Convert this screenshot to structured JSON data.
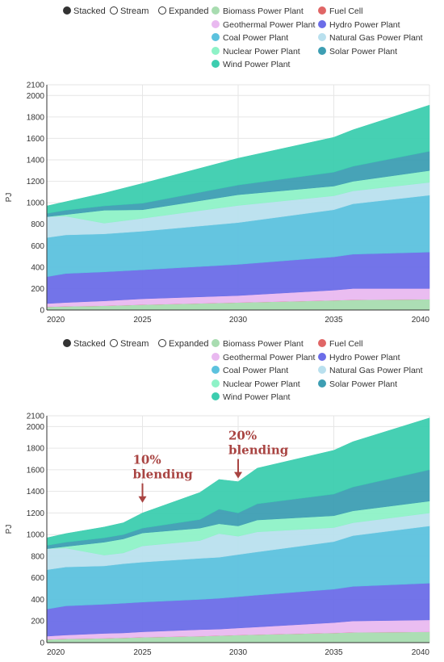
{
  "controls": [
    "Stacked",
    "Stream",
    "Expanded"
  ],
  "selected_control": "Stacked",
  "chart_data": [
    {
      "type": "area",
      "stacked": true,
      "xlabel": "",
      "ylabel": "PJ",
      "xlim": [
        2020,
        2040
      ],
      "ylim": [
        0,
        2100
      ],
      "x_ticks": [
        2020,
        2025,
        2030,
        2035,
        2040
      ],
      "y_ticks": [
        0,
        200,
        400,
        600,
        800,
        1000,
        1200,
        1400,
        1600,
        1800,
        2000,
        2100
      ],
      "grid": true,
      "legend": "top",
      "x": [
        2020,
        2021,
        2023,
        2025,
        2030,
        2035,
        2036,
        2040
      ],
      "series": [
        {
          "name": "Biomass Power Plant",
          "color": "#a8dcb0",
          "values": [
            30,
            35,
            40,
            50,
            70,
            90,
            95,
            100
          ]
        },
        {
          "name": "Fuel Cell",
          "color": "#e06666",
          "values": [
            0,
            0,
            0,
            0,
            0,
            0,
            0,
            0
          ]
        },
        {
          "name": "Geothermal Power Plant",
          "color": "#e9b9f0",
          "values": [
            30,
            35,
            45,
            55,
            65,
            95,
            105,
            100
          ]
        },
        {
          "name": "Hydro Power Plant",
          "color": "#6b6de8",
          "values": [
            250,
            270,
            270,
            270,
            290,
            310,
            320,
            340
          ]
        },
        {
          "name": "Coal Power Plant",
          "color": "#5cc2de",
          "values": [
            365,
            360,
            355,
            360,
            390,
            440,
            470,
            530
          ]
        },
        {
          "name": "Natural Gas Power Plant",
          "color": "#b9e0ee",
          "values": [
            195,
            175,
            100,
            120,
            160,
            130,
            120,
            120
          ]
        },
        {
          "name": "Nuclear Power Plant",
          "color": "#8ef2c7",
          "values": [
            0,
            15,
            120,
            80,
            100,
            90,
            90,
            110
          ]
        },
        {
          "name": "Solar Power Plant",
          "color": "#3d9eb3",
          "values": [
            30,
            40,
            40,
            60,
            90,
            130,
            140,
            180
          ]
        },
        {
          "name": "Wind Power Plant",
          "color": "#3ccdaf",
          "values": [
            70,
            80,
            120,
            185,
            250,
            325,
            340,
            430
          ]
        }
      ]
    },
    {
      "type": "area",
      "stacked": true,
      "xlabel": "",
      "ylabel": "PJ",
      "xlim": [
        2020,
        2040
      ],
      "ylim": [
        0,
        2100
      ],
      "x_ticks": [
        2020,
        2025,
        2030,
        2035,
        2040
      ],
      "y_ticks": [
        0,
        200,
        400,
        600,
        800,
        1000,
        1200,
        1400,
        1600,
        1800,
        2000,
        2100
      ],
      "grid": true,
      "legend": "top",
      "x": [
        2020,
        2021,
        2023,
        2024,
        2025,
        2028,
        2029,
        2030,
        2031,
        2035,
        2036,
        2040
      ],
      "series": [
        {
          "name": "Biomass Power Plant",
          "color": "#a8dcb0",
          "values": [
            30,
            35,
            40,
            45,
            50,
            60,
            65,
            70,
            75,
            90,
            95,
            100
          ]
        },
        {
          "name": "Fuel Cell",
          "color": "#e06666",
          "values": [
            0,
            0,
            0,
            0,
            0,
            0,
            0,
            0,
            0,
            0,
            0,
            0
          ]
        },
        {
          "name": "Geothermal Power Plant",
          "color": "#e9b9f0",
          "values": [
            30,
            35,
            45,
            45,
            50,
            60,
            60,
            65,
            70,
            95,
            105,
            110
          ]
        },
        {
          "name": "Hydro Power Plant",
          "color": "#6b6de8",
          "values": [
            250,
            270,
            270,
            275,
            275,
            280,
            285,
            290,
            295,
            310,
            320,
            340
          ]
        },
        {
          "name": "Coal Power Plant",
          "color": "#5cc2de",
          "values": [
            365,
            360,
            355,
            365,
            370,
            380,
            380,
            390,
            400,
            440,
            470,
            530
          ]
        },
        {
          "name": "Natural Gas Power Plant",
          "color": "#b9e0ee",
          "values": [
            195,
            175,
            100,
            100,
            150,
            165,
            220,
            170,
            185,
            130,
            120,
            120
          ]
        },
        {
          "name": "Nuclear Power Plant",
          "color": "#8ef2c7",
          "values": [
            0,
            15,
            120,
            130,
            120,
            115,
            90,
            95,
            110,
            110,
            110,
            110
          ]
        },
        {
          "name": "Solar Power Plant",
          "color": "#3d9eb3",
          "values": [
            30,
            40,
            40,
            40,
            45,
            80,
            135,
            120,
            150,
            200,
            220,
            290
          ]
        },
        {
          "name": "Wind Power Plant",
          "color": "#3ccdaf",
          "values": [
            70,
            80,
            100,
            110,
            140,
            250,
            275,
            290,
            330,
            405,
            420,
            480
          ]
        }
      ],
      "annotations": [
        {
          "lines": [
            "10%",
            "blending"
          ],
          "x": 2025,
          "y": 1265
        },
        {
          "lines": [
            "20%",
            "blending"
          ],
          "x": 2030,
          "y": 1490
        }
      ]
    }
  ]
}
